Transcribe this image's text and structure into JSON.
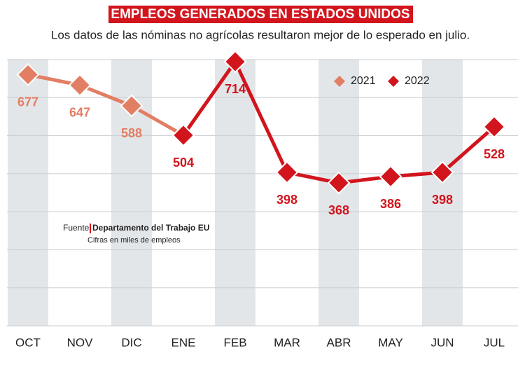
{
  "chart_data": {
    "type": "line",
    "title": "EMPLEOS GENERADOS EN ESTADOS UNIDOS",
    "subtitle": "Los datos de las nóminas no agrícolas resultaron mejor de lo esperado en julio.",
    "categories": [
      "OCT",
      "NOV",
      "DIC",
      "ENE",
      "FEB",
      "MAR",
      "ABR",
      "MAY",
      "JUN",
      "JUL"
    ],
    "series": [
      {
        "name": "2021",
        "color": "#e27e63",
        "values": [
          677,
          647,
          588,
          null,
          null,
          null,
          null,
          null,
          null,
          null
        ]
      },
      {
        "name": "2022",
        "color": "#d2151d",
        "values": [
          null,
          null,
          null,
          504,
          714,
          398,
          368,
          386,
          398,
          528
        ]
      }
    ],
    "ylim": [
      -40,
      720
    ],
    "source_prefix": "Fuente",
    "source": "Departamento del Trabajo EU",
    "note": "Cifras en miles de empleos"
  }
}
